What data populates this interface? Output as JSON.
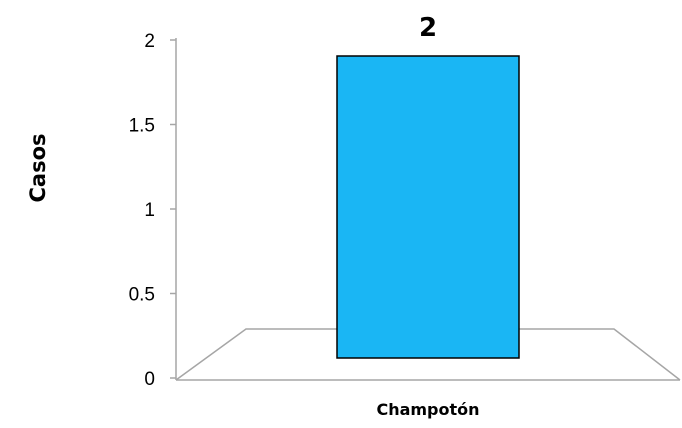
{
  "chart_data": {
    "type": "bar",
    "title": "",
    "categories": [
      "Champotón"
    ],
    "values": [
      2
    ],
    "data_labels": [
      "2"
    ],
    "xlabel": "",
    "ylabel": "Casos",
    "ylim": [
      0,
      2
    ],
    "yticks": [
      "0",
      "0.5",
      "1",
      "1.5",
      "2"
    ],
    "grid": false,
    "legend": "none",
    "bar_color": "#1ab6f4",
    "bar_border_color": "#000000",
    "floor_color": "#a6a6a6"
  }
}
